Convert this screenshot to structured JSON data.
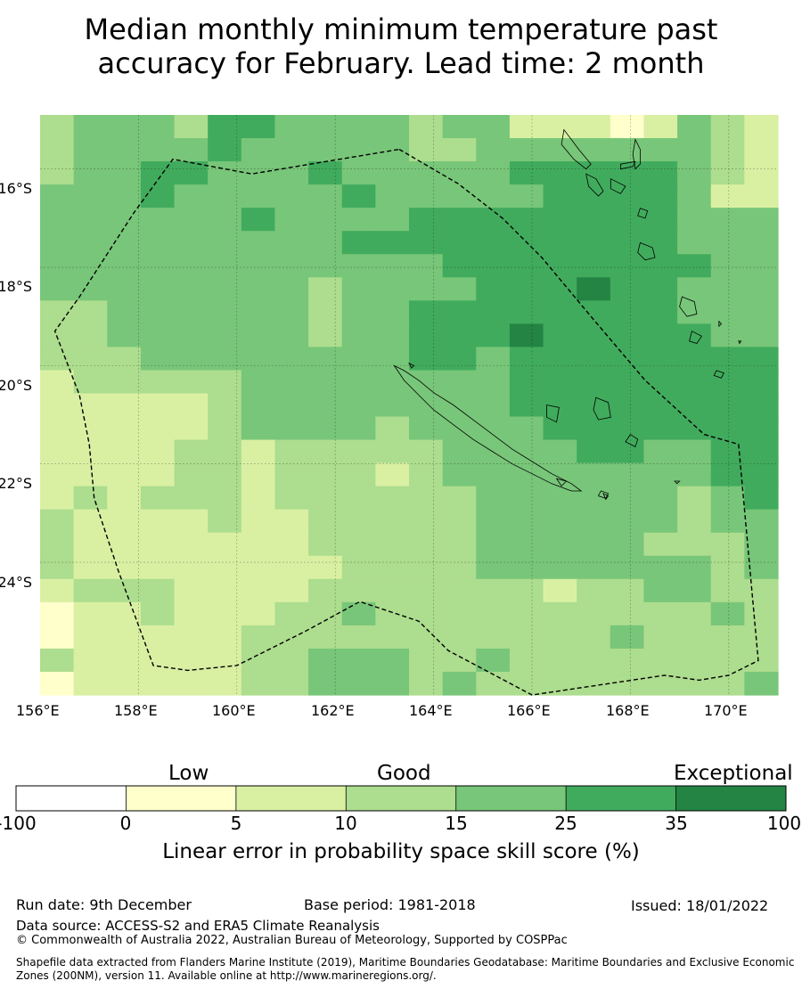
{
  "title": {
    "line1": "Median monthly minimum temperature past",
    "line2": "accuracy for February. Lead time: 2 month"
  },
  "map": {
    "lon_range": [
      156,
      171
    ],
    "lat_range": [
      -26.7,
      -14.9
    ],
    "lon_ticks": [
      "156°E",
      "158°E",
      "160°E",
      "162°E",
      "164°E",
      "166°E",
      "168°E",
      "170°E"
    ],
    "lat_ticks": [
      "16°S",
      "18°S",
      "20°S",
      "22°S",
      "24°S"
    ],
    "grid_values": [
      [
        3,
        4,
        4,
        4,
        3,
        5,
        5,
        4,
        4,
        4,
        4,
        3,
        4,
        4,
        2,
        2,
        2,
        1,
        2,
        4,
        3,
        2
      ],
      [
        3,
        4,
        4,
        4,
        4,
        5,
        4,
        4,
        4,
        4,
        4,
        3,
        3,
        4,
        4,
        4,
        4,
        4,
        4,
        4,
        3,
        2
      ],
      [
        3,
        4,
        4,
        5,
        5,
        4,
        4,
        4,
        5,
        4,
        4,
        4,
        4,
        4,
        5,
        5,
        5,
        5,
        5,
        4,
        3,
        2
      ],
      [
        4,
        4,
        4,
        5,
        4,
        4,
        4,
        4,
        4,
        5,
        4,
        4,
        4,
        4,
        4,
        5,
        5,
        5,
        5,
        4,
        2,
        2
      ],
      [
        4,
        4,
        4,
        4,
        4,
        4,
        5,
        4,
        4,
        4,
        4,
        5,
        5,
        5,
        5,
        5,
        5,
        5,
        5,
        4,
        4,
        4
      ],
      [
        4,
        4,
        4,
        4,
        4,
        4,
        4,
        4,
        4,
        5,
        5,
        5,
        5,
        5,
        5,
        5,
        5,
        5,
        5,
        4,
        4,
        4
      ],
      [
        4,
        4,
        4,
        4,
        4,
        4,
        4,
        4,
        4,
        4,
        4,
        4,
        5,
        5,
        5,
        5,
        5,
        5,
        5,
        5,
        4,
        4
      ],
      [
        4,
        4,
        4,
        4,
        4,
        4,
        4,
        4,
        3,
        4,
        4,
        4,
        4,
        5,
        5,
        5,
        6,
        5,
        5,
        4,
        4,
        4
      ],
      [
        3,
        3,
        4,
        4,
        4,
        4,
        4,
        4,
        3,
        4,
        4,
        5,
        5,
        5,
        5,
        5,
        5,
        5,
        5,
        4,
        4,
        4
      ],
      [
        3,
        3,
        4,
        4,
        4,
        4,
        4,
        4,
        3,
        4,
        4,
        5,
        5,
        5,
        6,
        5,
        5,
        5,
        5,
        5,
        4,
        4
      ],
      [
        3,
        3,
        3,
        4,
        4,
        4,
        4,
        4,
        4,
        4,
        4,
        5,
        5,
        4,
        5,
        5,
        5,
        5,
        5,
        5,
        5,
        5
      ],
      [
        2,
        3,
        3,
        3,
        3,
        3,
        4,
        4,
        4,
        4,
        4,
        4,
        4,
        4,
        5,
        5,
        5,
        5,
        5,
        5,
        5,
        5
      ],
      [
        2,
        2,
        2,
        2,
        2,
        3,
        4,
        4,
        4,
        4,
        4,
        4,
        4,
        4,
        5,
        5,
        5,
        5,
        5,
        5,
        5,
        5
      ],
      [
        2,
        2,
        2,
        2,
        2,
        3,
        4,
        4,
        4,
        4,
        3,
        4,
        4,
        4,
        4,
        5,
        5,
        5,
        5,
        5,
        5,
        5
      ],
      [
        2,
        2,
        2,
        2,
        3,
        3,
        2,
        3,
        3,
        3,
        3,
        3,
        4,
        4,
        4,
        4,
        5,
        5,
        4,
        4,
        5,
        5
      ],
      [
        2,
        2,
        2,
        2,
        3,
        3,
        2,
        3,
        3,
        3,
        2,
        3,
        4,
        4,
        4,
        4,
        4,
        4,
        4,
        4,
        5,
        5
      ],
      [
        2,
        3,
        2,
        3,
        3,
        3,
        2,
        3,
        3,
        3,
        3,
        3,
        3,
        4,
        4,
        4,
        4,
        4,
        4,
        3,
        4,
        5
      ],
      [
        3,
        2,
        2,
        2,
        2,
        3,
        2,
        2,
        3,
        3,
        3,
        3,
        3,
        4,
        4,
        4,
        4,
        4,
        4,
        3,
        4,
        4
      ],
      [
        3,
        2,
        2,
        2,
        2,
        2,
        2,
        2,
        3,
        3,
        3,
        3,
        3,
        4,
        4,
        4,
        4,
        4,
        3,
        3,
        3,
        4
      ],
      [
        3,
        2,
        2,
        2,
        2,
        2,
        2,
        2,
        2,
        3,
        3,
        3,
        3,
        4,
        4,
        4,
        4,
        4,
        4,
        4,
        3,
        4
      ],
      [
        2,
        3,
        3,
        3,
        2,
        2,
        2,
        2,
        3,
        3,
        3,
        3,
        3,
        3,
        3,
        2,
        3,
        3,
        4,
        4,
        3,
        3
      ],
      [
        1,
        2,
        2,
        3,
        2,
        2,
        2,
        3,
        3,
        4,
        3,
        3,
        3,
        3,
        3,
        3,
        3,
        3,
        3,
        3,
        4,
        3
      ],
      [
        1,
        2,
        2,
        2,
        2,
        2,
        3,
        3,
        3,
        3,
        3,
        3,
        3,
        3,
        3,
        3,
        3,
        4,
        3,
        3,
        3,
        3
      ],
      [
        3,
        2,
        2,
        2,
        2,
        2,
        3,
        3,
        4,
        4,
        4,
        3,
        3,
        4,
        3,
        3,
        3,
        3,
        3,
        3,
        3,
        3
      ],
      [
        1,
        2,
        2,
        2,
        2,
        2,
        3,
        3,
        4,
        4,
        4,
        3,
        4,
        3,
        3,
        3,
        3,
        3,
        3,
        3,
        3,
        4
      ]
    ],
    "eez_boundary": [
      [
        163.3,
        -15.6
      ],
      [
        164.5,
        -16.3
      ],
      [
        165.4,
        -17.0
      ],
      [
        166.2,
        -17.8
      ],
      [
        167.2,
        -19.0
      ],
      [
        168.3,
        -20.3
      ],
      [
        169.5,
        -21.4
      ],
      [
        170.2,
        -21.6
      ],
      [
        170.6,
        -26.0
      ],
      [
        170.0,
        -26.3
      ],
      [
        169.4,
        -26.4
      ],
      [
        168.7,
        -26.3
      ],
      [
        166.0,
        -26.7
      ],
      [
        164.3,
        -25.8
      ],
      [
        163.7,
        -25.2
      ],
      [
        162.5,
        -24.8
      ],
      [
        161.4,
        -25.4
      ],
      [
        160.0,
        -26.1
      ],
      [
        159.0,
        -26.2
      ],
      [
        158.3,
        -26.1
      ],
      [
        157.6,
        -24.2
      ],
      [
        157.1,
        -22.7
      ],
      [
        157.0,
        -21.6
      ],
      [
        156.8,
        -20.6
      ],
      [
        156.3,
        -19.3
      ],
      [
        156.8,
        -18.6
      ],
      [
        157.9,
        -16.9
      ],
      [
        158.7,
        -15.8
      ],
      [
        160.3,
        -16.1
      ]
    ],
    "coastlines": [
      [
        [
          163.2,
          -20.0
        ],
        [
          163.4,
          -20.1
        ],
        [
          163.7,
          -20.3
        ],
        [
          164.0,
          -20.55
        ],
        [
          164.4,
          -20.8
        ],
        [
          164.8,
          -21.1
        ],
        [
          165.2,
          -21.4
        ],
        [
          165.6,
          -21.7
        ],
        [
          166.0,
          -21.95
        ],
        [
          166.4,
          -22.2
        ],
        [
          166.8,
          -22.4
        ],
        [
          167.0,
          -22.55
        ],
        [
          166.8,
          -22.55
        ],
        [
          166.4,
          -22.4
        ],
        [
          166.0,
          -22.2
        ],
        [
          165.6,
          -22.0
        ],
        [
          165.2,
          -21.75
        ],
        [
          164.8,
          -21.5
        ],
        [
          164.4,
          -21.2
        ],
        [
          164.0,
          -20.9
        ],
        [
          163.7,
          -20.6
        ],
        [
          163.4,
          -20.3
        ]
      ],
      [
        [
          166.5,
          -22.3
        ],
        [
          166.7,
          -22.35
        ],
        [
          166.6,
          -22.45
        ]
      ],
      [
        [
          167.4,
          -22.55
        ],
        [
          167.55,
          -22.6
        ],
        [
          167.5,
          -22.7
        ],
        [
          167.35,
          -22.65
        ]
      ],
      [
        [
          166.3,
          -20.8
        ],
        [
          166.55,
          -20.85
        ],
        [
          166.5,
          -21.15
        ],
        [
          166.3,
          -21.05
        ]
      ],
      [
        [
          167.3,
          -20.65
        ],
        [
          167.55,
          -20.75
        ],
        [
          167.6,
          -21.05
        ],
        [
          167.35,
          -21.1
        ],
        [
          167.25,
          -20.9
        ]
      ],
      [
        [
          168.0,
          -21.4
        ],
        [
          168.15,
          -21.5
        ],
        [
          168.1,
          -21.65
        ],
        [
          167.9,
          -21.55
        ]
      ],
      [
        [
          163.5,
          -19.95
        ],
        [
          163.6,
          -20.0
        ],
        [
          163.55,
          -20.05
        ]
      ],
      [
        [
          166.65,
          -15.2
        ],
        [
          166.8,
          -15.4
        ],
        [
          166.95,
          -15.6
        ],
        [
          167.2,
          -15.9
        ],
        [
          167.1,
          -16.0
        ],
        [
          166.85,
          -15.8
        ],
        [
          166.6,
          -15.5
        ]
      ],
      [
        [
          167.1,
          -16.1
        ],
        [
          167.3,
          -16.2
        ],
        [
          167.45,
          -16.45
        ],
        [
          167.35,
          -16.55
        ],
        [
          167.15,
          -16.35
        ]
      ],
      [
        [
          168.1,
          -15.4
        ],
        [
          168.2,
          -15.6
        ],
        [
          168.2,
          -15.9
        ],
        [
          168.1,
          -16.0
        ],
        [
          168.05,
          -15.7
        ]
      ],
      [
        [
          167.6,
          -16.2
        ],
        [
          167.9,
          -16.35
        ],
        [
          167.8,
          -16.5
        ],
        [
          167.6,
          -16.4
        ]
      ],
      [
        [
          167.8,
          -15.9
        ],
        [
          168.1,
          -15.85
        ],
        [
          168.05,
          -15.95
        ],
        [
          167.8,
          -16.0
        ]
      ],
      [
        [
          168.2,
          -16.8
        ],
        [
          168.35,
          -16.85
        ],
        [
          168.3,
          -17.0
        ],
        [
          168.15,
          -16.95
        ]
      ],
      [
        [
          168.2,
          -17.5
        ],
        [
          168.45,
          -17.6
        ],
        [
          168.5,
          -17.8
        ],
        [
          168.3,
          -17.85
        ],
        [
          168.15,
          -17.7
        ]
      ],
      [
        [
          169.05,
          -18.6
        ],
        [
          169.3,
          -18.7
        ],
        [
          169.35,
          -18.95
        ],
        [
          169.15,
          -19.0
        ],
        [
          169.0,
          -18.8
        ]
      ],
      [
        [
          169.25,
          -19.3
        ],
        [
          169.45,
          -19.4
        ],
        [
          169.35,
          -19.55
        ],
        [
          169.2,
          -19.5
        ]
      ],
      [
        [
          169.75,
          -20.1
        ],
        [
          169.9,
          -20.15
        ],
        [
          169.85,
          -20.25
        ],
        [
          169.7,
          -20.2
        ]
      ],
      [
        [
          169.8,
          -19.1
        ],
        [
          169.85,
          -19.15
        ],
        [
          169.8,
          -19.2
        ]
      ],
      [
        [
          170.2,
          -19.5
        ],
        [
          170.25,
          -19.5
        ],
        [
          170.22,
          -19.55
        ]
      ],
      [
        [
          167.45,
          -22.6
        ],
        [
          167.55,
          -22.65
        ],
        [
          167.5,
          -22.72
        ]
      ],
      [
        [
          168.9,
          -22.35
        ],
        [
          169.0,
          -22.35
        ],
        [
          168.95,
          -22.4
        ]
      ]
    ]
  },
  "colorbar": {
    "categories": [
      "Low",
      "Good",
      "Exceptional"
    ],
    "tick_labels": [
      "-100",
      "0",
      "5",
      "10",
      "15",
      "25",
      "35",
      "100"
    ],
    "colors": [
      "#ffffff",
      "#ffffcc",
      "#d9f0a3",
      "#addd8e",
      "#78c679",
      "#41ab5d",
      "#238443"
    ],
    "title": "Linear error in probability space skill score (%)"
  },
  "footer": {
    "run_date": "Run date: 9th December",
    "base_period": "Base period: 1981-2018",
    "issued": "Issued: 18/01/2022",
    "data_source": "Data source: ACCESS-S2 and ERA5 Climate Reanalysis",
    "copyright": "© Commonwealth of Australia 2022, Australian Bureau of Meteorology, Supported by COSPPac",
    "shapefile": "Shapefile data extracted from Flanders Marine Institute (2019), Maritime Boundaries Geodatabase: Maritime Boundaries and Exclusive Economic Zones (200NM), version 11. Available online at http://www.marineregions.org/."
  }
}
